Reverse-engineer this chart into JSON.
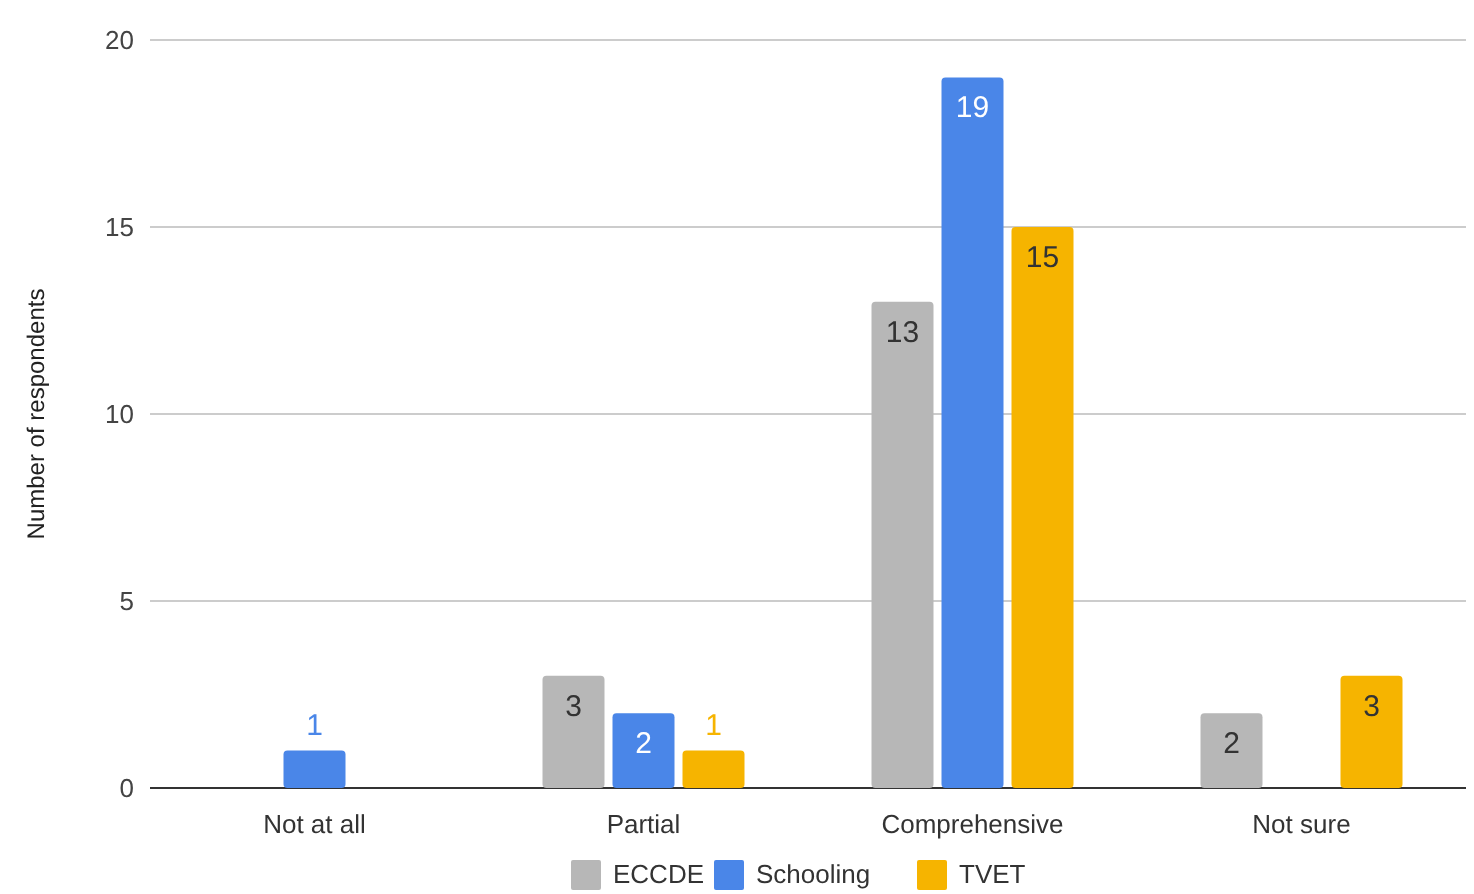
{
  "chart_data": {
    "type": "bar",
    "ylabel": "Number of respondents",
    "categories": [
      "Not at all",
      "Partial",
      "Comprehensive",
      "Not sure"
    ],
    "series": [
      {
        "name": "ECCDE",
        "color": "#b7b7b7",
        "values": [
          0,
          3,
          13,
          2
        ],
        "value_labels": [
          null,
          "3",
          "13",
          "2"
        ]
      },
      {
        "name": "Schooling",
        "color": "#4a86e8",
        "values": [
          1,
          2,
          19,
          0
        ],
        "value_labels": [
          "1",
          "2",
          "19",
          null
        ]
      },
      {
        "name": "TVET",
        "color": "#f6b400",
        "values": [
          0,
          1,
          15,
          3
        ],
        "value_labels": [
          null,
          "1",
          "15",
          "3"
        ]
      }
    ],
    "ylim": [
      0,
      20
    ],
    "yticks": [
      0,
      5,
      10,
      15,
      20
    ],
    "grid": "y",
    "legend": "bottom"
  }
}
